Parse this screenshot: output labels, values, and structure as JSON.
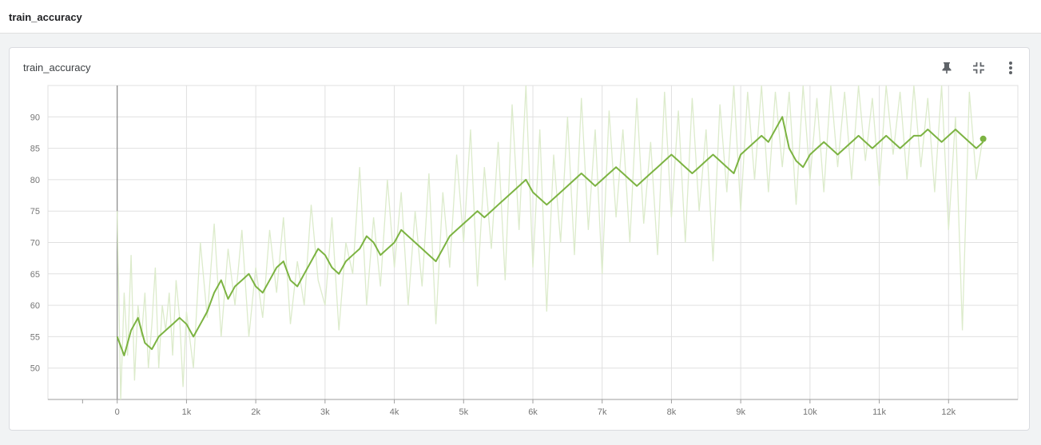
{
  "header": {
    "title": "train_accuracy"
  },
  "card": {
    "title": "train_accuracy",
    "actions": [
      "pin-icon",
      "fullscreen-exit-icon",
      "more-vert-icon"
    ]
  },
  "colors": {
    "line": "#7cb342",
    "raw": "#dcebcb",
    "grid": "#e0e0e0",
    "axis": "#9e9e9e"
  },
  "chart_data": {
    "type": "line",
    "title": "",
    "xlabel": "",
    "ylabel": "",
    "xlim": [
      -1000,
      13000
    ],
    "ylim": [
      45,
      95
    ],
    "grid": true,
    "x_ticks": [
      0,
      1000,
      2000,
      3000,
      4000,
      5000,
      6000,
      7000,
      8000,
      9000,
      10000,
      11000,
      12000
    ],
    "x_tick_labels": [
      "0",
      "1k",
      "2k",
      "3k",
      "4k",
      "5k",
      "6k",
      "7k",
      "8k",
      "9k",
      "10k",
      "11k",
      "12k"
    ],
    "y_ticks": [
      50,
      55,
      60,
      65,
      70,
      75,
      80,
      85,
      90
    ],
    "y_tick_labels": [
      "50",
      "55",
      "60",
      "65",
      "70",
      "75",
      "80",
      "85",
      "90"
    ],
    "series": [
      {
        "role": "smoothed",
        "x": [
          0,
          100,
          200,
          300,
          400,
          500,
          600,
          700,
          800,
          900,
          1000,
          1100,
          1200,
          1300,
          1400,
          1500,
          1600,
          1700,
          1800,
          1900,
          2000,
          2100,
          2200,
          2300,
          2400,
          2500,
          2600,
          2700,
          2800,
          2900,
          3000,
          3100,
          3200,
          3300,
          3400,
          3500,
          3600,
          3700,
          3800,
          3900,
          4000,
          4100,
          4200,
          4300,
          4400,
          4500,
          4600,
          4700,
          4800,
          4900,
          5000,
          5100,
          5200,
          5300,
          5400,
          5500,
          5600,
          5700,
          5800,
          5900,
          6000,
          6100,
          6200,
          6300,
          6400,
          6500,
          6600,
          6700,
          6800,
          6900,
          7000,
          7100,
          7200,
          7300,
          7400,
          7500,
          7600,
          7700,
          7800,
          7900,
          8000,
          8100,
          8200,
          8300,
          8400,
          8500,
          8600,
          8700,
          8800,
          8900,
          9000,
          9100,
          9200,
          9300,
          9400,
          9500,
          9600,
          9700,
          9800,
          9900,
          10000,
          10100,
          10200,
          10300,
          10400,
          10500,
          10600,
          10700,
          10800,
          10900,
          11000,
          11100,
          11200,
          11300,
          11400,
          11500,
          11600,
          11700,
          11800,
          11900,
          12000,
          12100,
          12200,
          12300,
          12400,
          12500
        ],
        "values": [
          55,
          52,
          56,
          58,
          54,
          53,
          55,
          56,
          57,
          58,
          57,
          55,
          57,
          59,
          62,
          64,
          61,
          63,
          64,
          65,
          63,
          62,
          64,
          66,
          67,
          64,
          63,
          65,
          67,
          69,
          68,
          66,
          65,
          67,
          68,
          69,
          71,
          70,
          68,
          69,
          70,
          72,
          71,
          70,
          69,
          68,
          67,
          69,
          71,
          72,
          73,
          74,
          75,
          74,
          75,
          76,
          77,
          78,
          79,
          80,
          78,
          77,
          76,
          77,
          78,
          79,
          80,
          81,
          80,
          79,
          80,
          81,
          82,
          81,
          80,
          79,
          80,
          81,
          82,
          83,
          84,
          83,
          82,
          81,
          82,
          83,
          84,
          83,
          82,
          81,
          84,
          85,
          86,
          87,
          86,
          88,
          90,
          85,
          83,
          82,
          84,
          85,
          86,
          85,
          84,
          85,
          86,
          87,
          86,
          85,
          86,
          87,
          86,
          85,
          86,
          87,
          87,
          88,
          87,
          86,
          87,
          88,
          87,
          86,
          85,
          86
        ]
      },
      {
        "role": "raw",
        "x": [
          0,
          50,
          100,
          150,
          200,
          250,
          300,
          350,
          400,
          450,
          500,
          550,
          600,
          650,
          700,
          750,
          800,
          850,
          900,
          950,
          1000,
          1100,
          1200,
          1300,
          1400,
          1500,
          1600,
          1700,
          1800,
          1900,
          2000,
          2100,
          2200,
          2300,
          2400,
          2500,
          2600,
          2700,
          2800,
          2900,
          3000,
          3100,
          3200,
          3300,
          3400,
          3500,
          3600,
          3700,
          3800,
          3900,
          4000,
          4100,
          4200,
          4300,
          4400,
          4500,
          4600,
          4700,
          4800,
          4900,
          5000,
          5100,
          5200,
          5300,
          5400,
          5500,
          5600,
          5700,
          5800,
          5900,
          6000,
          6100,
          6200,
          6300,
          6400,
          6500,
          6600,
          6700,
          6800,
          6900,
          7000,
          7100,
          7200,
          7300,
          7400,
          7500,
          7600,
          7700,
          7800,
          7900,
          8000,
          8100,
          8200,
          8300,
          8400,
          8500,
          8600,
          8700,
          8800,
          8900,
          9000,
          9100,
          9200,
          9300,
          9400,
          9500,
          9600,
          9700,
          9800,
          9900,
          10000,
          10100,
          10200,
          10300,
          10400,
          10500,
          10600,
          10700,
          10800,
          10900,
          11000,
          11100,
          11200,
          11300,
          11400,
          11500,
          11600,
          11700,
          11800,
          11900,
          12000,
          12100,
          12200,
          12300,
          12400,
          12500
        ],
        "values": [
          75,
          45,
          62,
          52,
          68,
          48,
          60,
          55,
          62,
          50,
          57,
          66,
          50,
          60,
          56,
          62,
          52,
          64,
          58,
          47,
          59,
          50,
          70,
          58,
          73,
          55,
          69,
          60,
          72,
          55,
          66,
          58,
          72,
          62,
          74,
          57,
          67,
          60,
          76,
          64,
          60,
          74,
          56,
          70,
          65,
          82,
          60,
          74,
          63,
          80,
          66,
          78,
          60,
          75,
          63,
          81,
          57,
          78,
          66,
          84,
          70,
          88,
          63,
          82,
          69,
          86,
          64,
          92,
          72,
          95,
          66,
          88,
          59,
          84,
          70,
          90,
          68,
          93,
          72,
          88,
          65,
          91,
          74,
          88,
          70,
          93,
          73,
          86,
          68,
          94,
          74,
          91,
          70,
          93,
          75,
          88,
          67,
          92,
          78,
          95,
          75,
          94,
          80,
          95,
          78,
          94,
          82,
          94,
          76,
          95,
          80,
          93,
          78,
          95,
          82,
          94,
          80,
          95,
          83,
          93,
          79,
          95,
          84,
          94,
          80,
          95,
          82,
          93,
          78,
          95,
          72,
          90,
          56,
          94,
          80,
          87
        ]
      }
    ],
    "last_point": {
      "x": 12500,
      "y": 86.5
    }
  }
}
